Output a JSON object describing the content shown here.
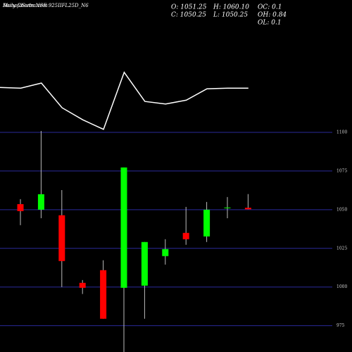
{
  "chart_data": {
    "type": "candlestick",
    "title": "Daily Charts NSE 925IIFL25D_N6",
    "subtitle": "MunafaSutra.com",
    "stats": [
      "O: 1051.25",
      "H: 1060.10",
      "OC: 0.1",
      "C: 1050.25",
      "L: 1050.25",
      "OH: 0.84",
      "OL: 0.1"
    ],
    "open": [
      1053.6,
      1050,
      1046.4,
      1002.7,
      1010.9,
      999.5,
      1000.9,
      1020,
      1035,
      1032.7,
      1051,
      1051.25
    ],
    "high": [
      1056.8,
      1100.9,
      1062.7,
      1004.5,
      1017.3,
      1077.3,
      1029.1,
      1030.9,
      1051.8,
      1055,
      1058.2,
      1060.1
    ],
    "low": [
      1040,
      1044.5,
      1000,
      995.5,
      979.5,
      958,
      979.5,
      1014.5,
      1027.3,
      1029.1,
      1044.5,
      1050.25
    ],
    "close": [
      1049.1,
      1060,
      1016.8,
      999.5,
      979.5,
      1077.3,
      1029.1,
      1024.5,
      1030.9,
      1050,
      1051.4,
      1050.25
    ],
    "up_color": "#00ff00",
    "down_color": "#ff0000",
    "ylim": [
      958,
      1100
    ],
    "yticks": [
      975,
      1000,
      1025,
      1050,
      1075,
      1100
    ],
    "grid": true,
    "line": {
      "values": [
        73,
        72,
        80,
        41,
        22,
        7,
        97,
        51,
        47,
        53,
        71,
        72,
        72
      ],
      "ylim": [
        0,
        100
      ],
      "color": "#ffffff"
    }
  }
}
